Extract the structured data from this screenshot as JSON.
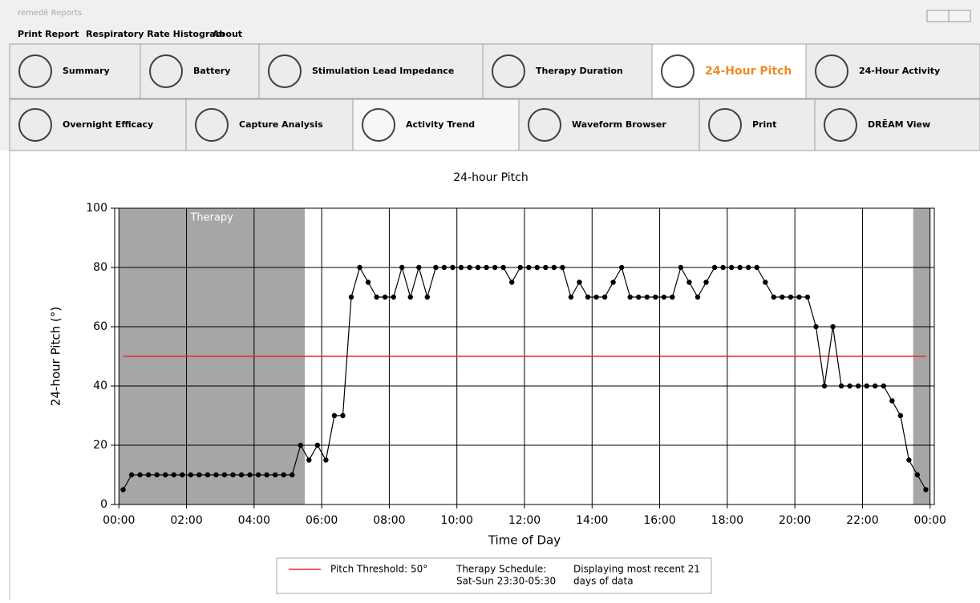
{
  "header": {
    "app_title": "remedē Reports"
  },
  "menu": [
    "Print Report",
    "Respiratory Rate Histogram",
    "About"
  ],
  "tabs_row1": [
    "Summary",
    "Battery",
    "Stimulation Lead Impedance",
    "Therapy Duration",
    "24-Hour Pitch",
    "24-Hour Activity"
  ],
  "tabs_row2": [
    "Overnight Efficacy",
    "Capture Analysis",
    "Activity Trend",
    "Waveform Browser",
    "Print",
    "DRĒAM View"
  ],
  "chart_data": {
    "type": "line",
    "title": "24-hour Pitch",
    "x_label": "Time of Day",
    "y_label": "24-hour Pitch (°)",
    "x": [
      0.125,
      0.375,
      0.625,
      0.875,
      1.125,
      1.375,
      1.625,
      1.875,
      2.125,
      2.375,
      2.625,
      2.875,
      3.125,
      3.375,
      3.625,
      3.875,
      4.125,
      4.375,
      4.625,
      4.875,
      5.125,
      5.375,
      5.625,
      5.875,
      6.125,
      6.375,
      6.625,
      6.875,
      7.125,
      7.375,
      7.625,
      7.875,
      8.125,
      8.375,
      8.625,
      8.875,
      9.125,
      9.375,
      9.625,
      9.875,
      10.125,
      10.375,
      10.625,
      10.875,
      11.125,
      11.375,
      11.625,
      11.875,
      12.125,
      12.375,
      12.625,
      12.875,
      13.125,
      13.375,
      13.625,
      13.875,
      14.125,
      14.375,
      14.625,
      14.875,
      15.125,
      15.375,
      15.625,
      15.875,
      16.125,
      16.375,
      16.625,
      16.875,
      17.125,
      17.375,
      17.625,
      17.875,
      18.125,
      18.375,
      18.625,
      18.875,
      19.125,
      19.375,
      19.625,
      19.875,
      20.125,
      20.375,
      20.625,
      20.875,
      21.125,
      21.375,
      21.625,
      21.875,
      22.125,
      22.375,
      22.625,
      22.875,
      23.125,
      23.375,
      23.625,
      23.875
    ],
    "series": [
      {
        "color": "#000000",
        "values": [
          5,
          10,
          10,
          10,
          10,
          10,
          10,
          10,
          10,
          10,
          10,
          10,
          10,
          10,
          10,
          10,
          10,
          10,
          10,
          10,
          10,
          20,
          15,
          20,
          15,
          30,
          30,
          70,
          80,
          75,
          70,
          70,
          70,
          80,
          70,
          80,
          70,
          80,
          80,
          80,
          80,
          80,
          80,
          80,
          80,
          80,
          75,
          80,
          80,
          80,
          80,
          80,
          80,
          70,
          75,
          70,
          70,
          70,
          75,
          80,
          70,
          70,
          70,
          70,
          70,
          70,
          80,
          75,
          70,
          75,
          80,
          80,
          80,
          80,
          80,
          80,
          75,
          70,
          70,
          70,
          70,
          70,
          60,
          40,
          60,
          40,
          40,
          40,
          40,
          40,
          40,
          35,
          30,
          15,
          10,
          5
        ]
      }
    ],
    "threshold": {
      "value": 50,
      "color": "#e8262b",
      "label": "Pitch Threshold: 50°"
    },
    "therapy_bands": [
      [
        0,
        5.5
      ],
      [
        23.5,
        24
      ]
    ],
    "therapy_color": "#a6a6a6",
    "therapy_label": "Therapy",
    "notes": [
      [
        "Therapy Schedule:",
        "Sat-Sun 23:30-05:30"
      ],
      [
        "Displaying most recent 21",
        "days of data"
      ]
    ],
    "xlim": [
      -0.125,
      24.125
    ],
    "xticks": [
      {
        "value": 0,
        "label": "00:00"
      },
      {
        "value": 2,
        "label": "02:00"
      },
      {
        "value": 4,
        "label": "04:00"
      },
      {
        "value": 6,
        "label": "06:00"
      },
      {
        "value": 8,
        "label": "08:00"
      },
      {
        "value": 10,
        "label": "10:00"
      },
      {
        "value": 12,
        "label": "12:00"
      },
      {
        "value": 14,
        "label": "14:00"
      },
      {
        "value": 16,
        "label": "16:00"
      },
      {
        "value": 18,
        "label": "18:00"
      },
      {
        "value": 20,
        "label": "20:00"
      },
      {
        "value": 22,
        "label": "22:00"
      },
      {
        "value": 24,
        "label": "00:00"
      }
    ],
    "ylim": [
      0,
      100
    ],
    "yticks": [
      0,
      20,
      40,
      60,
      80,
      100
    ],
    "grid": true
  }
}
